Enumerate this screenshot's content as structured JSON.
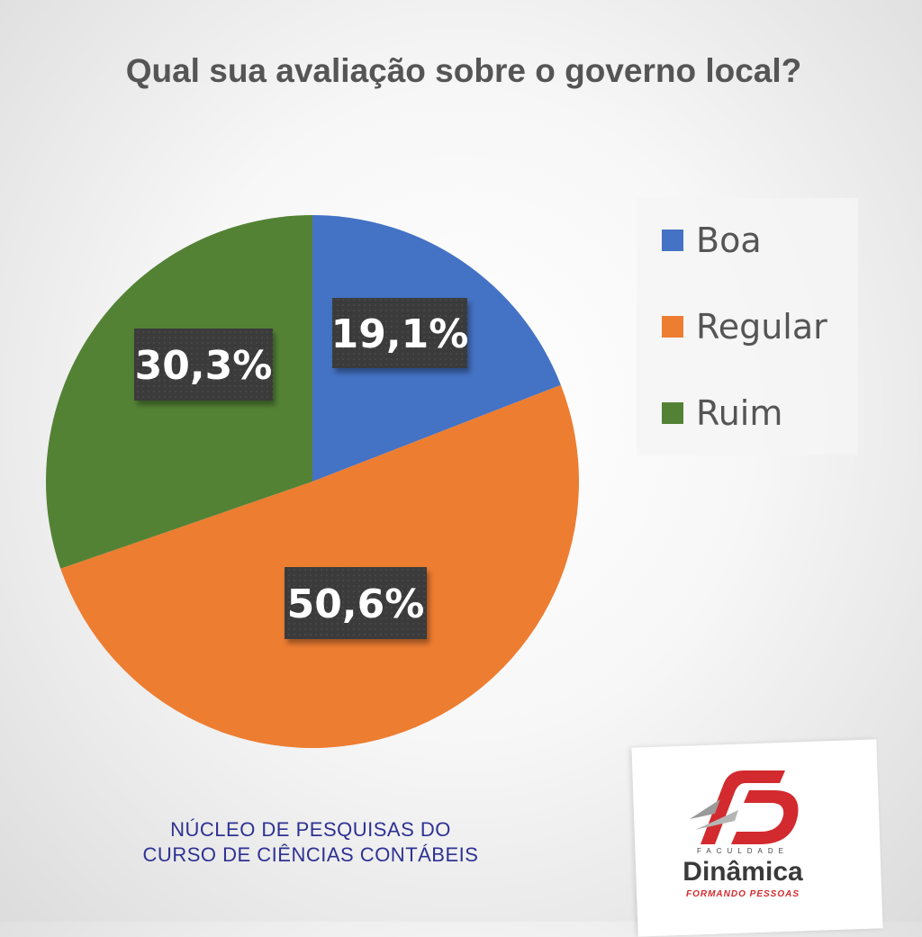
{
  "chart_data": {
    "type": "pie",
    "title": "Qual sua avaliação sobre o governo local?",
    "categories": [
      "Boa",
      "Regular",
      "Ruim"
    ],
    "values": [
      19.1,
      50.6,
      30.3
    ],
    "labels": [
      "19,1%",
      "50,6%",
      "30,3%"
    ],
    "colors": [
      "#4472c4",
      "#ed7d31",
      "#548235"
    ],
    "legend_position": "right"
  },
  "footer": {
    "line1": "NÚCLEO DE PESQUISAS DO",
    "line2": "CURSO DE CIÊNCIAS CONTÁBEIS"
  },
  "logo": {
    "faculdade": "FACULDADE",
    "name": "Dinâmica",
    "tagline": "FORMANDO PESSOAS",
    "icon": "fd-logo-icon",
    "brand_color": "#d22a2e"
  }
}
